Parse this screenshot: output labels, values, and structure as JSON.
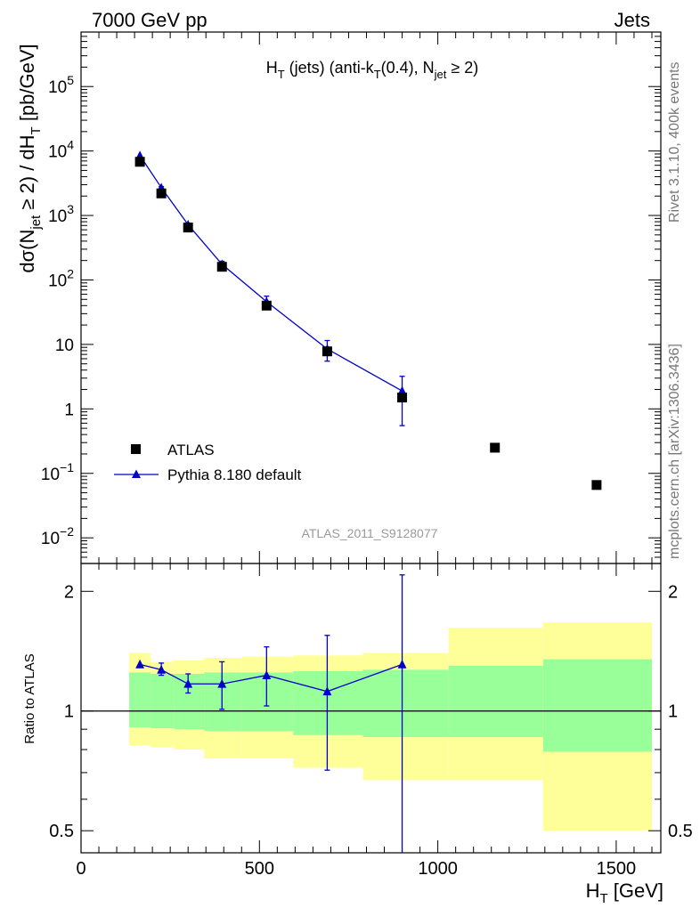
{
  "header": {
    "left": "7000 GeV pp",
    "right": "Jets"
  },
  "side_labels": {
    "rivet": "Rivet 3.1.10,  400k events",
    "mcplots": "mcplots.cern.ch [arXiv:1306.3436]"
  },
  "analysis_tag": "ATLAS_2011_S9128077",
  "colors": {
    "data": "#000000",
    "mc": "#0000cc",
    "band_inner": "#99ff99",
    "band_outer": "#ffff99"
  },
  "chart_data": [
    {
      "type": "scatter",
      "panel": "main",
      "title_parts": {
        "H": "H",
        "T1": "T",
        "mid": " (jets) (anti-k",
        "T2": "T",
        "r": "(0.4), N",
        "jet": "jet",
        "ge": " ≥ 2)"
      },
      "ylabel_parts": {
        "a": "dσ(N",
        "jet": "jet",
        "b": " ≥ 2) / dH",
        "T": "T",
        "c": " [pb/GeV]"
      },
      "y_scale": "log",
      "xlim": [
        0,
        1625
      ],
      "ylim": [
        0.004,
        700000
      ],
      "y_ticks": [
        {
          "value": 0.01,
          "base": "10",
          "exp": "−2"
        },
        {
          "value": 0.1,
          "base": "10",
          "exp": "−1"
        },
        {
          "value": 1,
          "base": "1",
          "exp": ""
        },
        {
          "value": 10,
          "base": "10",
          "exp": ""
        },
        {
          "value": 100,
          "base": "10",
          "exp": "2"
        },
        {
          "value": 1000,
          "base": "10",
          "exp": "3"
        },
        {
          "value": 10000,
          "base": "10",
          "exp": "4"
        },
        {
          "value": 100000,
          "base": "10",
          "exp": "5"
        }
      ],
      "legend_position": "lower-left",
      "series": [
        {
          "name": "ATLAS",
          "marker": "square",
          "points": [
            {
              "x": 165,
              "y": 6800
            },
            {
              "x": 225,
              "y": 2200
            },
            {
              "x": 300,
              "y": 650
            },
            {
              "x": 395,
              "y": 160
            },
            {
              "x": 520,
              "y": 40
            },
            {
              "x": 690,
              "y": 7.8
            },
            {
              "x": 900,
              "y": 1.5
            },
            {
              "x": 1160,
              "y": 0.25
            },
            {
              "x": 1445,
              "y": 0.066
            }
          ]
        },
        {
          "name": "Pythia 8.180 default",
          "marker": "triangle",
          "line": true,
          "points": [
            {
              "x": 165,
              "y": 8500,
              "lo": 8500,
              "hi": 8500
            },
            {
              "x": 225,
              "y": 2700,
              "lo": 2600,
              "hi": 2800
            },
            {
              "x": 300,
              "y": 720,
              "lo": 690,
              "hi": 760
            },
            {
              "x": 395,
              "y": 175,
              "lo": 160,
              "hi": 195
            },
            {
              "x": 520,
              "y": 46,
              "lo": 38,
              "hi": 56
            },
            {
              "x": 690,
              "y": 8.5,
              "lo": 5.5,
              "hi": 11.5
            },
            {
              "x": 900,
              "y": 1.9,
              "lo": 0.55,
              "hi": 3.2
            }
          ]
        }
      ]
    },
    {
      "type": "scatter",
      "panel": "ratio",
      "ylabel": "Ratio to ATLAS",
      "xlabel_parts": {
        "H": "H",
        "T": "T",
        "unit": " [GeV]"
      },
      "y_scale": "log",
      "xlim": [
        0,
        1625
      ],
      "ylim": [
        0.44,
        2.35
      ],
      "x_ticks": [
        {
          "value": 0,
          "label": "0"
        },
        {
          "value": 500,
          "label": "500"
        },
        {
          "value": 1000,
          "label": "1000"
        },
        {
          "value": 1500,
          "label": "1500"
        }
      ],
      "y_ticks": [
        {
          "value": 0.5,
          "label": "0.5"
        },
        {
          "value": 1,
          "label": "1"
        },
        {
          "value": 2,
          "label": "2"
        }
      ],
      "reference": 1,
      "bands": [
        {
          "x0": 135,
          "x1": 195,
          "in_lo": 0.91,
          "in_hi": 1.25,
          "out_lo": 0.82,
          "out_hi": 1.4
        },
        {
          "x0": 195,
          "x1": 260,
          "in_lo": 0.905,
          "in_hi": 1.24,
          "out_lo": 0.81,
          "out_hi": 1.33
        },
        {
          "x0": 260,
          "x1": 345,
          "in_lo": 0.9,
          "in_hi": 1.24,
          "out_lo": 0.8,
          "out_hi": 1.34
        },
        {
          "x0": 345,
          "x1": 450,
          "in_lo": 0.89,
          "in_hi": 1.25,
          "out_lo": 0.76,
          "out_hi": 1.36
        },
        {
          "x0": 450,
          "x1": 595,
          "in_lo": 0.89,
          "in_hi": 1.25,
          "out_lo": 0.76,
          "out_hi": 1.37
        },
        {
          "x0": 595,
          "x1": 790,
          "in_lo": 0.87,
          "in_hi": 1.26,
          "out_lo": 0.72,
          "out_hi": 1.38
        },
        {
          "x0": 790,
          "x1": 1030,
          "in_lo": 0.86,
          "in_hi": 1.27,
          "out_lo": 0.67,
          "out_hi": 1.4
        },
        {
          "x0": 1030,
          "x1": 1295,
          "in_lo": 0.86,
          "in_hi": 1.3,
          "out_lo": 0.67,
          "out_hi": 1.62
        },
        {
          "x0": 1295,
          "x1": 1600,
          "in_lo": 0.79,
          "in_hi": 1.35,
          "out_lo": 0.5,
          "out_hi": 1.67
        }
      ],
      "series": [
        {
          "name": "Pythia 8.180 default",
          "marker": "triangle",
          "line": true,
          "points": [
            {
              "x": 165,
              "y": 1.31,
              "lo": 1.31,
              "hi": 1.31
            },
            {
              "x": 225,
              "y": 1.27,
              "lo": 1.23,
              "hi": 1.32
            },
            {
              "x": 300,
              "y": 1.17,
              "lo": 1.11,
              "hi": 1.24
            },
            {
              "x": 395,
              "y": 1.17,
              "lo": 1.01,
              "hi": 1.33
            },
            {
              "x": 520,
              "y": 1.23,
              "lo": 1.03,
              "hi": 1.45
            },
            {
              "x": 690,
              "y": 1.12,
              "lo": 0.71,
              "hi": 1.55
            },
            {
              "x": 900,
              "y": 1.31,
              "lo": 0.4,
              "hi": 2.2
            }
          ]
        }
      ]
    }
  ]
}
